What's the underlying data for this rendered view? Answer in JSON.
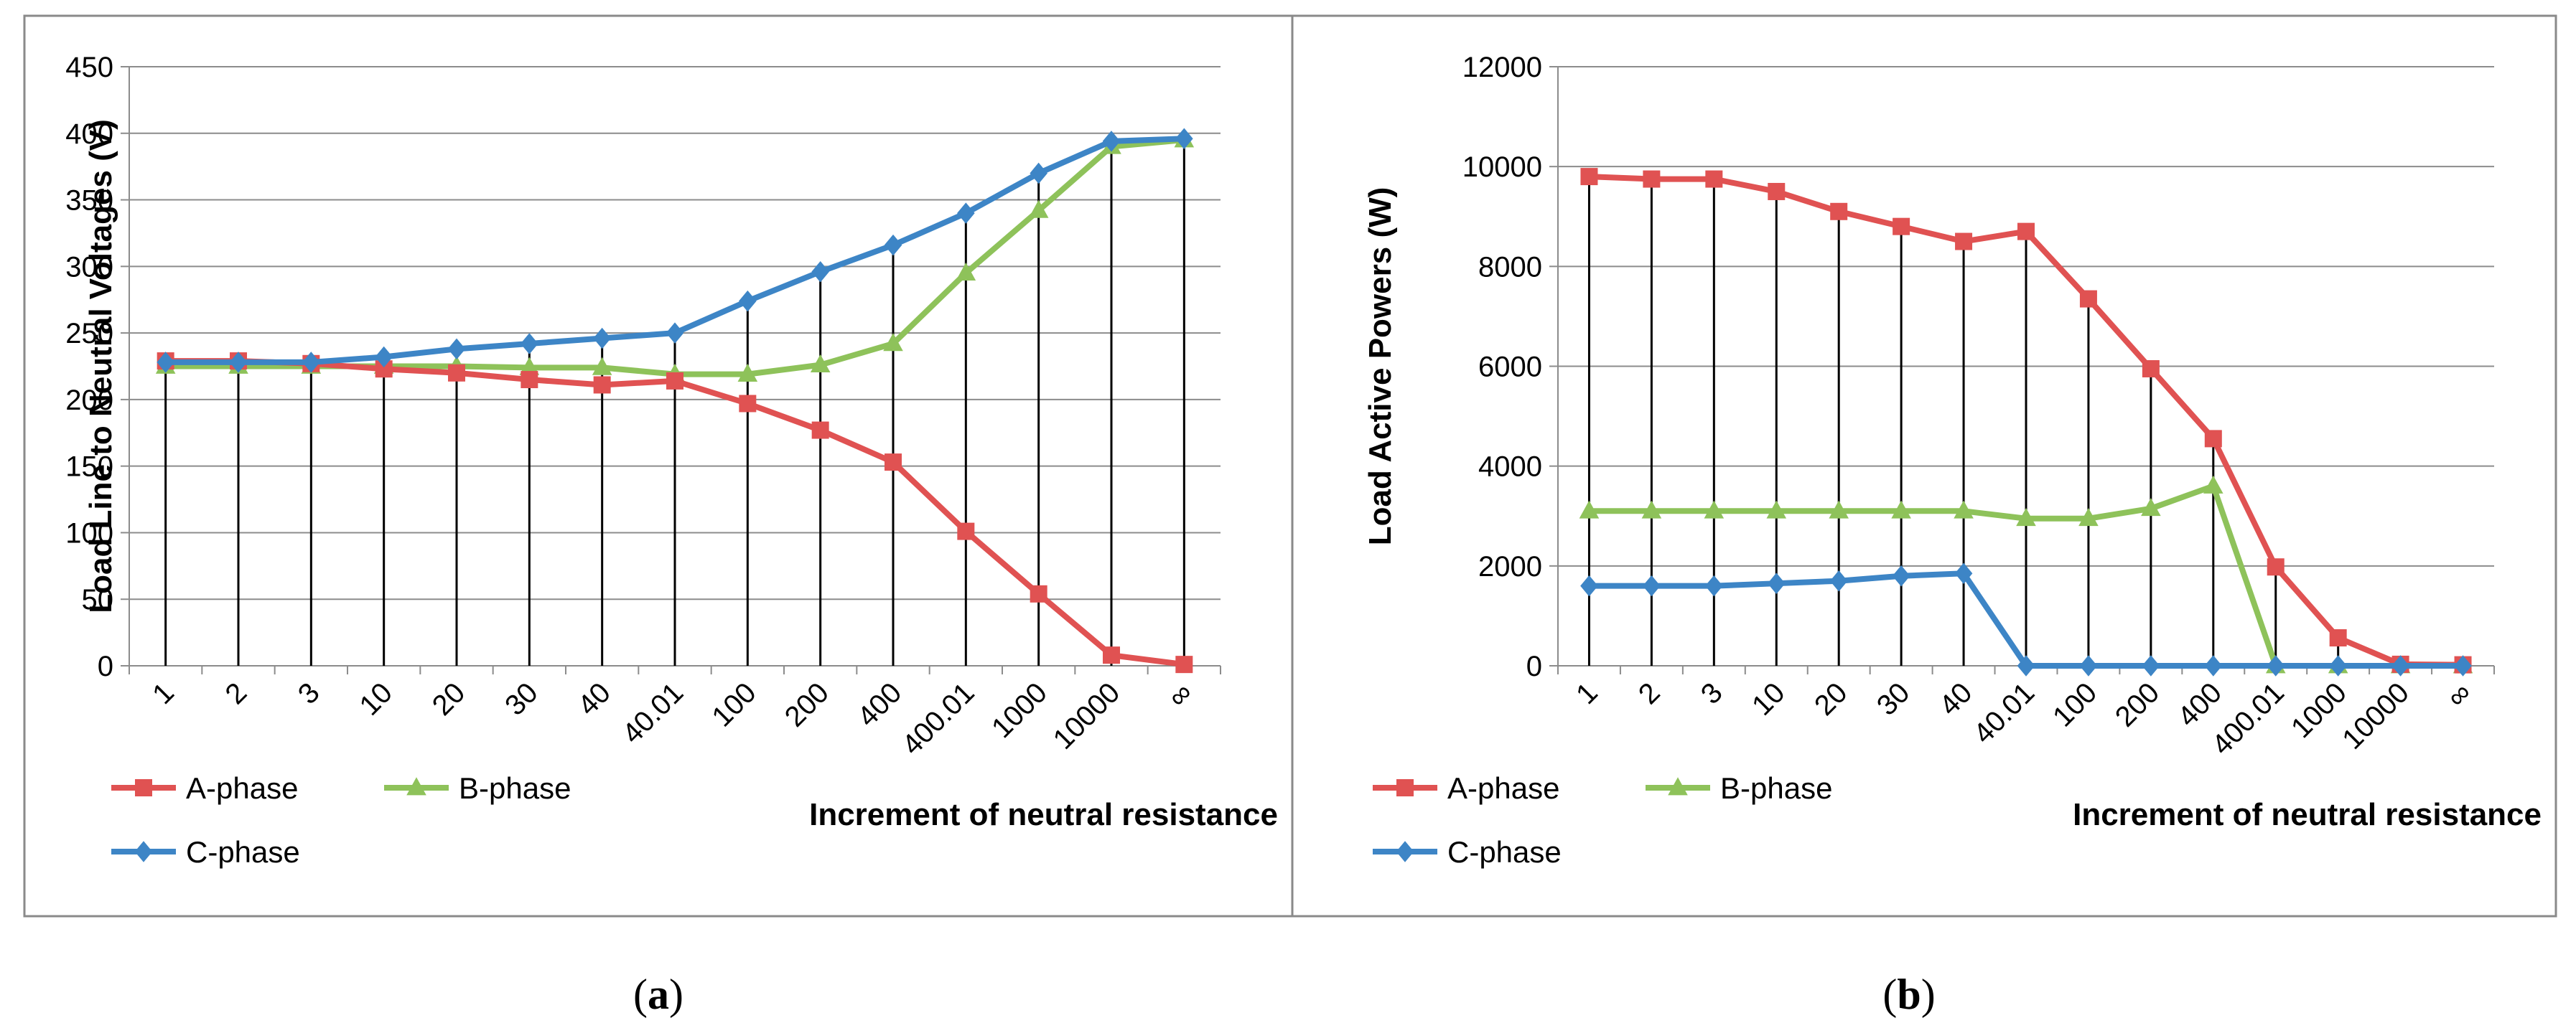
{
  "captions": {
    "left": [
      "(",
      "a",
      ")"
    ],
    "right": [
      "(",
      "b",
      ")"
    ]
  },
  "legend": [
    {
      "name": "A-phase",
      "color": "#e05252",
      "marker": "square"
    },
    {
      "name": "B-phase",
      "color": "#8ec25a",
      "marker": "triangle"
    },
    {
      "name": "C-phase",
      "color": "#3d85c6",
      "marker": "diamond"
    }
  ],
  "chart_data": [
    {
      "type": "line",
      "title": "",
      "xlabel": "Increment of neutral resistance",
      "ylabel": "Load Line to Neutral Voltages (V)",
      "categories": [
        "1",
        "2",
        "3",
        "10",
        "20",
        "30",
        "40",
        "40.01",
        "100",
        "200",
        "400",
        "400.01",
        "1000",
        "10000",
        "∞"
      ],
      "ylim": [
        0,
        450
      ],
      "yticks": [
        0,
        50,
        100,
        150,
        200,
        250,
        300,
        350,
        400,
        450
      ],
      "series": [
        {
          "name": "A-phase",
          "values": [
            229,
            229,
            227,
            223,
            220,
            215,
            211,
            214,
            197,
            177,
            153,
            101,
            54,
            8,
            1
          ]
        },
        {
          "name": "B-phase",
          "values": [
            225,
            225,
            225,
            225,
            225,
            224,
            224,
            219,
            219,
            226,
            242,
            295,
            342,
            390,
            395
          ]
        },
        {
          "name": "C-phase",
          "values": [
            228,
            228,
            228,
            232,
            238,
            242,
            246,
            250,
            274,
            296,
            316,
            340,
            370,
            394,
            396
          ]
        }
      ]
    },
    {
      "type": "line",
      "title": "",
      "xlabel": "Increment of neutral resistance",
      "ylabel": "Load Active Powers (W)",
      "categories": [
        "1",
        "2",
        "3",
        "10",
        "20",
        "30",
        "40",
        "40.01",
        "100",
        "200",
        "400",
        "400.01",
        "1000",
        "10000",
        "∞"
      ],
      "ylim": [
        0,
        12000
      ],
      "yticks": [
        0,
        2000,
        4000,
        6000,
        8000,
        10000,
        12000
      ],
      "series": [
        {
          "name": "A-phase",
          "values": [
            9800,
            9750,
            9750,
            9500,
            9100,
            8800,
            8500,
            8700,
            7350,
            5950,
            4550,
            1980,
            560,
            30,
            20
          ]
        },
        {
          "name": "B-phase",
          "values": [
            3100,
            3100,
            3100,
            3100,
            3100,
            3100,
            3100,
            2950,
            2950,
            3150,
            3600,
            0,
            0,
            0,
            0
          ]
        },
        {
          "name": "C-phase",
          "values": [
            1600,
            1600,
            1600,
            1650,
            1700,
            1800,
            1850,
            0,
            0,
            0,
            0,
            0,
            0,
            0,
            0
          ]
        }
      ]
    }
  ]
}
